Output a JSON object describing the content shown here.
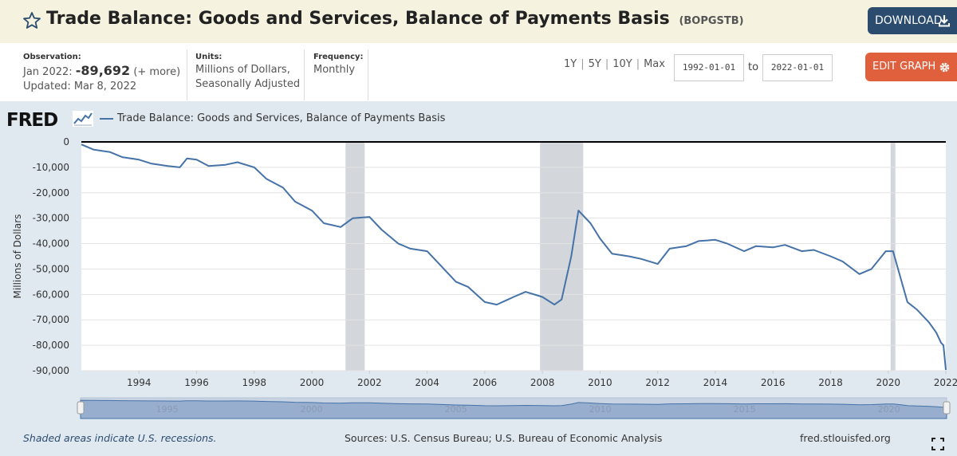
{
  "header": {
    "title": "Trade Balance: Goods and Services, Balance of Payments Basis",
    "series_id": "(BOPGSTB)",
    "download_label": "DOWNLOAD",
    "star_icon": "star-outline-icon",
    "download_icon": "download-icon"
  },
  "meta": {
    "observation_label": "Observation:",
    "observation_date": "Jan 2022:",
    "observation_value": "-89,692",
    "observation_more": "(+ more)",
    "updated": "Updated: Mar 8, 2022",
    "units_label": "Units:",
    "units_line1": "Millions of Dollars,",
    "units_line2": "Seasonally Adjusted",
    "frequency_label": "Frequency:",
    "frequency_value": "Monthly"
  },
  "controls": {
    "ranges": [
      "1Y",
      "5Y",
      "10Y",
      "Max"
    ],
    "start_date": "1992-01-01",
    "to_label": "to",
    "end_date": "2022-01-01",
    "edit_label": "EDIT GRAPH",
    "edit_icon": "gear-icon"
  },
  "logo": {
    "text": "FRED"
  },
  "footer": {
    "note": "Shaded areas indicate U.S. recessions.",
    "sources": "Sources: U.S. Census Bureau; U.S. Bureau of Economic Analysis",
    "url": "fred.stlouisfed.org",
    "expand_icon": "fullscreen-icon"
  },
  "colors": {
    "line": "#4572a7",
    "recession": "#d3d7dc",
    "panel": "#e1e9f0",
    "download_bg": "#2b4c6f",
    "edit_bg": "#e0603e"
  },
  "chart_data": {
    "type": "line",
    "title": "",
    "xlabel": "",
    "ylabel": "Millions of Dollars",
    "ylim": [
      -90000,
      0
    ],
    "yticks": [
      0,
      -10000,
      -20000,
      -30000,
      -40000,
      -50000,
      -60000,
      -70000,
      -80000,
      -90000
    ],
    "ytick_labels": [
      "0",
      "-10,000",
      "-20,000",
      "-30,000",
      "-40,000",
      "-50,000",
      "-60,000",
      "-70,000",
      "-80,000",
      "-90,000"
    ],
    "xrange": [
      "1992-01",
      "2022-01"
    ],
    "xticks": [
      "1994",
      "1996",
      "1998",
      "2000",
      "2002",
      "2004",
      "2006",
      "2008",
      "2010",
      "2012",
      "2014",
      "2016",
      "2018",
      "2020",
      "2022"
    ],
    "navigator_labels": [
      "1995",
      "2000",
      "2005",
      "2010",
      "2015",
      "2020"
    ],
    "legend": "top-left",
    "grid": true,
    "recessions": [
      [
        "2001-03",
        "2001-11"
      ],
      [
        "2007-12",
        "2009-06"
      ],
      [
        "2020-02",
        "2020-04"
      ]
    ],
    "series": [
      {
        "name": "Trade Balance: Goods and Services, Balance of Payments Basis",
        "points": [
          [
            "1992-01",
            -1000
          ],
          [
            "1992-06",
            -3000
          ],
          [
            "1993-01",
            -4000
          ],
          [
            "1993-06",
            -6000
          ],
          [
            "1994-01",
            -7000
          ],
          [
            "1994-06",
            -8500
          ],
          [
            "1995-01",
            -9500
          ],
          [
            "1995-06",
            -10000
          ],
          [
            "1995-09",
            -6500
          ],
          [
            "1996-01",
            -7000
          ],
          [
            "1996-06",
            -9500
          ],
          [
            "1997-01",
            -9000
          ],
          [
            "1997-06",
            -8000
          ],
          [
            "1998-01",
            -10000
          ],
          [
            "1998-06",
            -14500
          ],
          [
            "1999-01",
            -18000
          ],
          [
            "1999-06",
            -23500
          ],
          [
            "2000-01",
            -27000
          ],
          [
            "2000-06",
            -32000
          ],
          [
            "2001-01",
            -33500
          ],
          [
            "2001-06",
            -30000
          ],
          [
            "2002-01",
            -29500
          ],
          [
            "2002-06",
            -34500
          ],
          [
            "2003-01",
            -40000
          ],
          [
            "2003-06",
            -42000
          ],
          [
            "2004-01",
            -43000
          ],
          [
            "2004-06",
            -48000
          ],
          [
            "2005-01",
            -55000
          ],
          [
            "2005-06",
            -57000
          ],
          [
            "2006-01",
            -63000
          ],
          [
            "2006-06",
            -64000
          ],
          [
            "2007-01",
            -61000
          ],
          [
            "2007-06",
            -59000
          ],
          [
            "2008-01",
            -61000
          ],
          [
            "2008-06",
            -64000
          ],
          [
            "2008-09",
            -62000
          ],
          [
            "2009-01",
            -45000
          ],
          [
            "2009-04",
            -27000
          ],
          [
            "2009-09",
            -32000
          ],
          [
            "2010-01",
            -38000
          ],
          [
            "2010-06",
            -44000
          ],
          [
            "2011-01",
            -45000
          ],
          [
            "2011-06",
            -46000
          ],
          [
            "2012-01",
            -48000
          ],
          [
            "2012-06",
            -42000
          ],
          [
            "2013-01",
            -41000
          ],
          [
            "2013-06",
            -39000
          ],
          [
            "2014-01",
            -38500
          ],
          [
            "2014-06",
            -40000
          ],
          [
            "2015-01",
            -43000
          ],
          [
            "2015-06",
            -41000
          ],
          [
            "2016-01",
            -41500
          ],
          [
            "2016-06",
            -40500
          ],
          [
            "2017-01",
            -43000
          ],
          [
            "2017-06",
            -42500
          ],
          [
            "2018-01",
            -45000
          ],
          [
            "2018-06",
            -47000
          ],
          [
            "2019-01",
            -52000
          ],
          [
            "2019-06",
            -50000
          ],
          [
            "2019-12",
            -43000
          ],
          [
            "2020-03",
            -43000
          ],
          [
            "2020-06",
            -53000
          ],
          [
            "2020-09",
            -63000
          ],
          [
            "2021-01",
            -66000
          ],
          [
            "2021-06",
            -71000
          ],
          [
            "2021-09",
            -75000
          ],
          [
            "2021-11",
            -79000
          ],
          [
            "2021-12",
            -80000
          ],
          [
            "2022-01",
            -89692
          ]
        ]
      }
    ]
  }
}
